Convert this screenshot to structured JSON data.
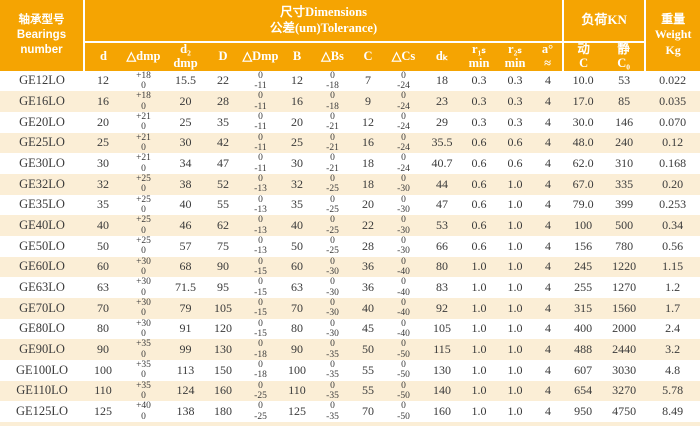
{
  "colors": {
    "header_bg": "#F5A402",
    "header_text": "#FFFFFF",
    "row_stripe": "#FBEED6",
    "row_white": "#FFFFFF",
    "body_text": "#3A3A3A"
  },
  "table": {
    "header": {
      "bearing_col_lines": [
        "轴承型号",
        "Bearings",
        "number"
      ],
      "dimensions_title_lines": [
        "尺寸Dimensions",
        "公差(um)Tolerance)"
      ],
      "load_title": "负荷KN",
      "weight_col_lines": [
        "重量",
        "Weight",
        "Kg"
      ],
      "sub_columns": [
        {
          "name": "d",
          "lines": [
            "d"
          ]
        },
        {
          "name": "delta-dmp",
          "lines": [
            "△dmp"
          ]
        },
        {
          "name": "d2-dmp",
          "lines": [
            "d₂",
            "dmp"
          ]
        },
        {
          "name": "D",
          "lines": [
            "D"
          ]
        },
        {
          "name": "delta-Dmp",
          "lines": [
            "△Dmp"
          ]
        },
        {
          "name": "B",
          "lines": [
            "B"
          ]
        },
        {
          "name": "delta-Bs",
          "lines": [
            "△Bs"
          ]
        },
        {
          "name": "C",
          "lines": [
            "C"
          ]
        },
        {
          "name": "delta-Cs",
          "lines": [
            "△Cs"
          ]
        },
        {
          "name": "dk",
          "lines": [
            "dₖ"
          ]
        },
        {
          "name": "r1s-min",
          "lines": [
            "r₁ₛ",
            "min"
          ]
        },
        {
          "name": "r2s-min",
          "lines": [
            "r₂ₛ",
            "min"
          ]
        },
        {
          "name": "a-approx",
          "lines": [
            "a°",
            "≈"
          ]
        },
        {
          "name": "dynamic-C",
          "lines": [
            "动",
            "C"
          ]
        },
        {
          "name": "static-C0",
          "lines": [
            "静",
            "C₀"
          ]
        }
      ]
    },
    "rows": [
      [
        "GE12LO",
        "12",
        [
          "+18",
          "0"
        ],
        "15.5",
        "22",
        [
          "0",
          "-11"
        ],
        "12",
        [
          "0",
          "-18"
        ],
        "7",
        [
          "0",
          "-24"
        ],
        "18",
        "0.3",
        "0.3",
        "4",
        "10.0",
        "53",
        "0.022"
      ],
      [
        "GE16LO",
        "16",
        [
          "+18",
          "0"
        ],
        "20",
        "28",
        [
          "0",
          "-11"
        ],
        "16",
        [
          "0",
          "-18"
        ],
        "9",
        [
          "0",
          "-24"
        ],
        "23",
        "0.3",
        "0.3",
        "4",
        "17.0",
        "85",
        "0.035"
      ],
      [
        "GE20LO",
        "20",
        [
          "+21",
          "0"
        ],
        "25",
        "35",
        [
          "0",
          "-11"
        ],
        "20",
        [
          "0",
          "-21"
        ],
        "12",
        [
          "0",
          "-24"
        ],
        "29",
        "0.3",
        "0.3",
        "4",
        "30.0",
        "146",
        "0.070"
      ],
      [
        "GE25LO",
        "25",
        [
          "+21",
          "0"
        ],
        "30",
        "42",
        [
          "0",
          "-11"
        ],
        "25",
        [
          "0",
          "-21"
        ],
        "16",
        [
          "0",
          "-24"
        ],
        "35.5",
        "0.6",
        "0.6",
        "4",
        "48.0",
        "240",
        "0.12"
      ],
      [
        "GE30LO",
        "30",
        [
          "+21",
          "0"
        ],
        "34",
        "47",
        [
          "0",
          "-11"
        ],
        "30",
        [
          "0",
          "-21"
        ],
        "18",
        [
          "0",
          "-24"
        ],
        "40.7",
        "0.6",
        "0.6",
        "4",
        "62.0",
        "310",
        "0.168"
      ],
      [
        "GE32LO",
        "32",
        [
          "+25",
          "0"
        ],
        "38",
        "52",
        [
          "0",
          "-13"
        ],
        "32",
        [
          "0",
          "-25"
        ],
        "18",
        [
          "0",
          "-30"
        ],
        "44",
        "0.6",
        "1.0",
        "4",
        "67.0",
        "335",
        "0.20"
      ],
      [
        "GE35LO",
        "35",
        [
          "+25",
          "0"
        ],
        "40",
        "55",
        [
          "0",
          "-13"
        ],
        "35",
        [
          "0",
          "-25"
        ],
        "20",
        [
          "0",
          "-30"
        ],
        "47",
        "0.6",
        "1.0",
        "4",
        "79.0",
        "399",
        "0.253"
      ],
      [
        "GE40LO",
        "40",
        [
          "+25",
          "0"
        ],
        "46",
        "62",
        [
          "0",
          "-13"
        ],
        "40",
        [
          "0",
          "-25"
        ],
        "22",
        [
          "0",
          "-30"
        ],
        "53",
        "0.6",
        "1.0",
        "4",
        "100",
        "500",
        "0.34"
      ],
      [
        "GE50LO",
        "50",
        [
          "+25",
          "0"
        ],
        "57",
        "75",
        [
          "0",
          "-13"
        ],
        "50",
        [
          "0",
          "-25"
        ],
        "28",
        [
          "0",
          "-30"
        ],
        "66",
        "0.6",
        "1.0",
        "4",
        "156",
        "780",
        "0.56"
      ],
      [
        "GE60LO",
        "60",
        [
          "+30",
          "0"
        ],
        "68",
        "90",
        [
          "0",
          "-15"
        ],
        "60",
        [
          "0",
          "-30"
        ],
        "36",
        [
          "0",
          "-40"
        ],
        "80",
        "1.0",
        "1.0",
        "4",
        "245",
        "1220",
        "1.15"
      ],
      [
        "GE63LO",
        "63",
        [
          "+30",
          "0"
        ],
        "71.5",
        "95",
        [
          "0",
          "-15"
        ],
        "63",
        [
          "0",
          "-30"
        ],
        "36",
        [
          "0",
          "-40"
        ],
        "83",
        "1.0",
        "1.0",
        "4",
        "255",
        "1270",
        "1.2"
      ],
      [
        "GE70LO",
        "70",
        [
          "+30",
          "0"
        ],
        "79",
        "105",
        [
          "0",
          "-15"
        ],
        "70",
        [
          "0",
          "-30"
        ],
        "40",
        [
          "0",
          "-40"
        ],
        "92",
        "1.0",
        "1.0",
        "4",
        "315",
        "1560",
        "1.7"
      ],
      [
        "GE80LO",
        "80",
        [
          "+30",
          "0"
        ],
        "91",
        "120",
        [
          "0",
          "-15"
        ],
        "80",
        [
          "0",
          "-30"
        ],
        "45",
        [
          "0",
          "-40"
        ],
        "105",
        "1.0",
        "1.0",
        "4",
        "400",
        "2000",
        "2.4"
      ],
      [
        "GE90LO",
        "90",
        [
          "+35",
          "0"
        ],
        "99",
        "130",
        [
          "0",
          "-18"
        ],
        "90",
        [
          "0",
          "-35"
        ],
        "50",
        [
          "0",
          "-50"
        ],
        "115",
        "1.0",
        "1.0",
        "4",
        "488",
        "2440",
        "3.2"
      ],
      [
        "GE100LO",
        "100",
        [
          "+35",
          "0"
        ],
        "113",
        "150",
        [
          "0",
          "-18"
        ],
        "100",
        [
          "0",
          "-35"
        ],
        "55",
        [
          "0",
          "-50"
        ],
        "130",
        "1.0",
        "1.0",
        "4",
        "607",
        "3030",
        "4.8"
      ],
      [
        "GE110LO",
        "110",
        [
          "+35",
          "0"
        ],
        "124",
        "160",
        [
          "0",
          "-25"
        ],
        "110",
        [
          "0",
          "-35"
        ],
        "55",
        [
          "0",
          "-50"
        ],
        "140",
        "1.0",
        "1.0",
        "4",
        "654",
        "3270",
        "5.78"
      ],
      [
        "GE125LO",
        "125",
        [
          "+40",
          "0"
        ],
        "138",
        "180",
        [
          "0",
          "-25"
        ],
        "125",
        [
          "0",
          "-35"
        ],
        "70",
        [
          "0",
          "-50"
        ],
        "160",
        "1.0",
        "1.0",
        "4",
        "950",
        "4750",
        "8.49"
      ]
    ]
  }
}
